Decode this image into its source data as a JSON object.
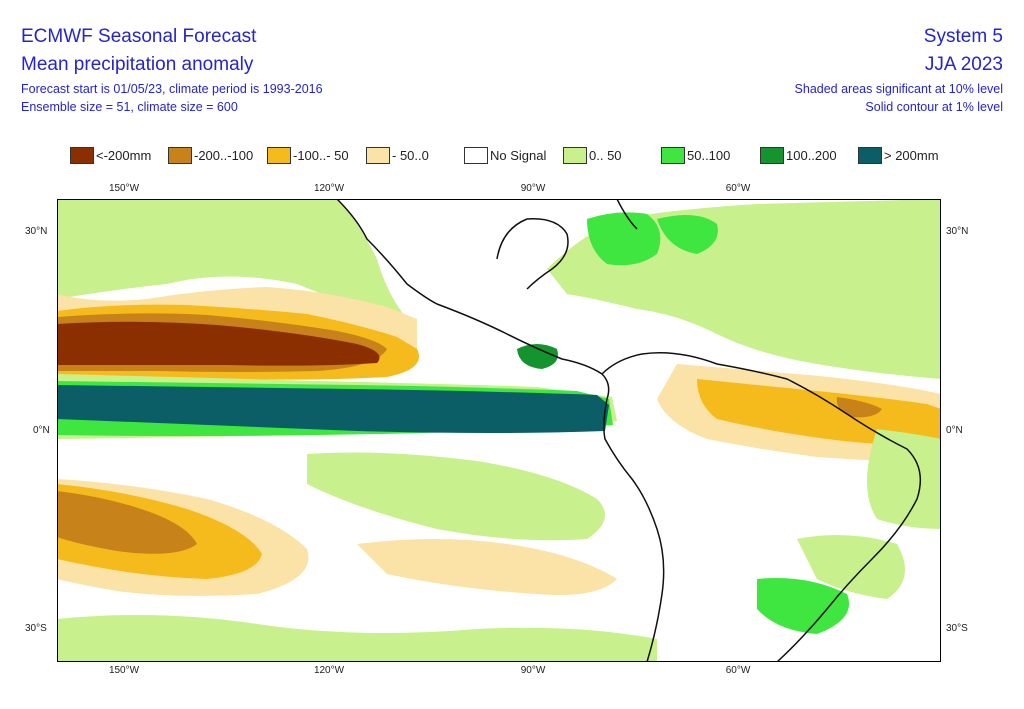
{
  "header": {
    "title": "ECMWF Seasonal Forecast",
    "subtitle": "Mean precipitation anomaly",
    "forecast_info": "Forecast start is 01/05/23, climate period is 1993-2016",
    "ensemble_info": "Ensemble size = 51, climate size = 600",
    "system": "System 5",
    "season": "JJA 2023",
    "significance_note": "Shaded areas significant at 10% level",
    "contour_note": "Solid contour at 1% level"
  },
  "legend": [
    {
      "label": "<-200mm",
      "color": "#8b2e00"
    },
    {
      "label": "-200..-100",
      "color": "#c8821a"
    },
    {
      "label": "-100..- 50",
      "color": "#f5bb1c"
    },
    {
      "label": "- 50..0",
      "color": "#fbe2a6"
    },
    {
      "label": "No Signal",
      "color": "#ffffff"
    },
    {
      "label": "0.. 50",
      "color": "#c8f08c"
    },
    {
      "label": "50..100",
      "color": "#3fe63f"
    },
    {
      "label": "100..200",
      "color": "#14932e"
    },
    {
      "label": "> 200mm",
      "color": "#0c5e66"
    }
  ],
  "axes": {
    "lon_ticks": [
      "150°W",
      "120°W",
      "90°W",
      "60°W"
    ],
    "lat_ticks": [
      "30°N",
      "0°N",
      "30°S"
    ]
  }
}
